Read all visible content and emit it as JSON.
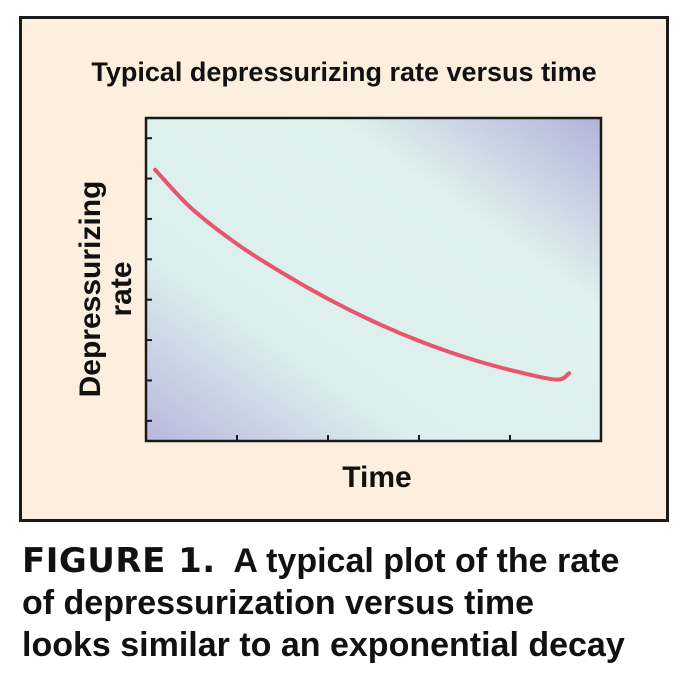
{
  "chart_data": {
    "type": "line",
    "title": "Typical depressurizing rate versus time",
    "xlabel": "Time",
    "ylabel": [
      "Depressurizing",
      "rate"
    ],
    "xlim": [
      0,
      1
    ],
    "ylim": [
      0,
      1
    ],
    "series": [
      {
        "values_x": [
          0.02,
          0.1,
          0.2,
          0.3,
          0.4,
          0.5,
          0.6,
          0.7,
          0.8,
          0.9,
          0.93
        ],
        "values_y": [
          0.84,
          0.72,
          0.61,
          0.52,
          0.44,
          0.37,
          0.31,
          0.26,
          0.22,
          0.19,
          0.21
        ],
        "color": "#e8566e"
      }
    ],
    "x_ticks": 6,
    "y_ticks": 8,
    "tick_labels_shown": false,
    "grid": false,
    "background_gradient": [
      "#b7b8dc",
      "#e0f2ee",
      "#e0f2ee",
      "#b7b8dc"
    ]
  },
  "caption": {
    "lead": "FIGURE 1.",
    "lines": [
      "A typical plot of the rate",
      "of depressurization versus time",
      "looks similar to an exponential decay"
    ]
  },
  "colors": {
    "panel_bg": "#fcefdf",
    "border": "#1a1a1a",
    "curve": "#e8566e"
  }
}
